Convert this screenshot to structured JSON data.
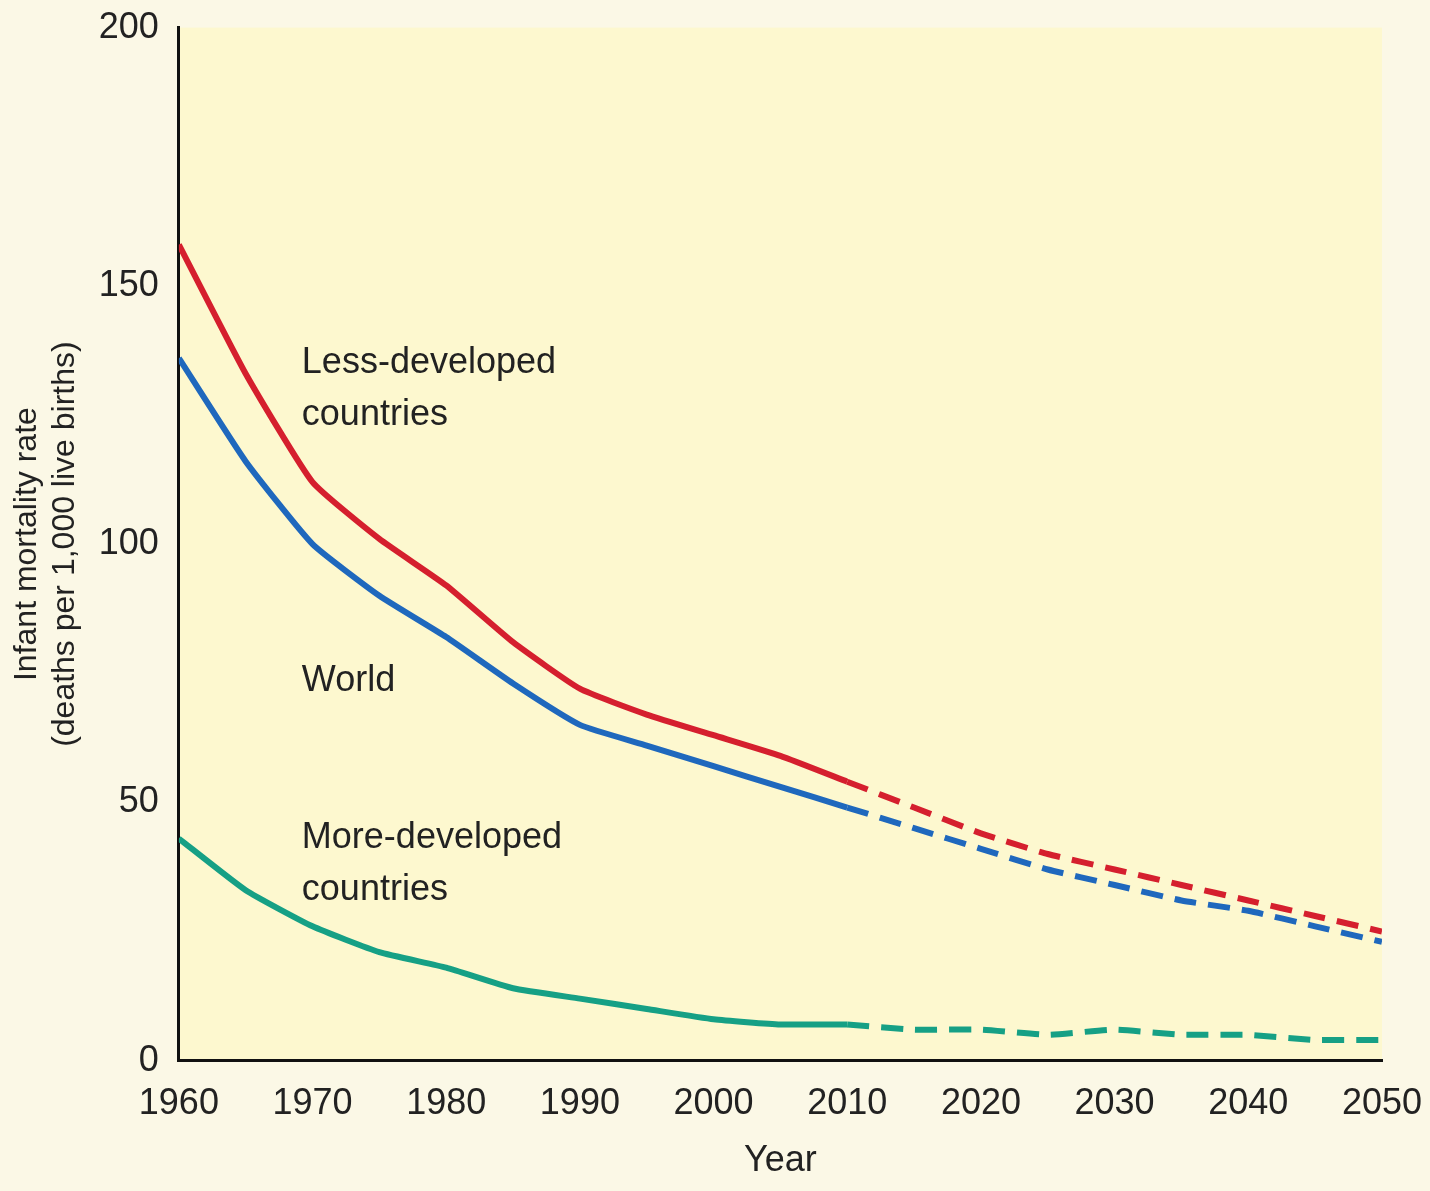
{
  "chart_data": {
    "type": "line",
    "x_label": "Year",
    "y_label": "Infant mortality rate (deaths per 1,000 live births)",
    "x": [
      1960,
      1965,
      1970,
      1975,
      1980,
      1985,
      1990,
      1995,
      2000,
      2005,
      2010,
      2015,
      2020,
      2025,
      2030,
      2035,
      2040,
      2045,
      2050
    ],
    "xlim": [
      1960,
      2050
    ],
    "xticks": [
      1960,
      1970,
      1980,
      1990,
      2000,
      2010,
      2020,
      2030,
      2040,
      2050
    ],
    "ylim": [
      0,
      200
    ],
    "yticks": [
      0,
      50,
      100,
      150,
      200
    ],
    "grid": false,
    "series": [
      {
        "name": "Less-developed countries",
        "color": "#d51f2e",
        "line_style": "solid",
        "values": [
          158,
          133,
          112,
          101,
          92,
          81,
          72,
          67,
          63,
          59,
          54,
          null,
          null,
          null,
          null,
          null,
          null,
          null,
          null
        ]
      },
      {
        "color": "#d51f2e",
        "line_style": "dashed",
        "values": [
          null,
          null,
          null,
          null,
          null,
          null,
          null,
          null,
          null,
          null,
          54,
          49,
          44,
          40,
          37,
          34,
          31,
          28,
          25
        ]
      },
      {
        "name": "World",
        "color": "#1f68bd",
        "line_style": "solid",
        "values": [
          136,
          116,
          100,
          90,
          82,
          73,
          65,
          61,
          57,
          53,
          49,
          null,
          null,
          null,
          null,
          null,
          null,
          null,
          null
        ]
      },
      {
        "color": "#1f68bd",
        "line_style": "dashed",
        "values": [
          null,
          null,
          null,
          null,
          null,
          null,
          null,
          null,
          null,
          null,
          49,
          45,
          41,
          37,
          34,
          31,
          29,
          26,
          23
        ]
      },
      {
        "name": "More-developed countries",
        "color": "#16a085",
        "line_style": "solid",
        "values": [
          43,
          33,
          26,
          21,
          18,
          14,
          12,
          10,
          8,
          7,
          7,
          null,
          null,
          null,
          null,
          null,
          null,
          null,
          null
        ]
      },
      {
        "color": "#16a085",
        "line_style": "dashed",
        "values": [
          null,
          null,
          null,
          null,
          null,
          null,
          null,
          null,
          null,
          null,
          7,
          6,
          6,
          5,
          6,
          5,
          5,
          4,
          4
        ]
      }
    ]
  }
}
